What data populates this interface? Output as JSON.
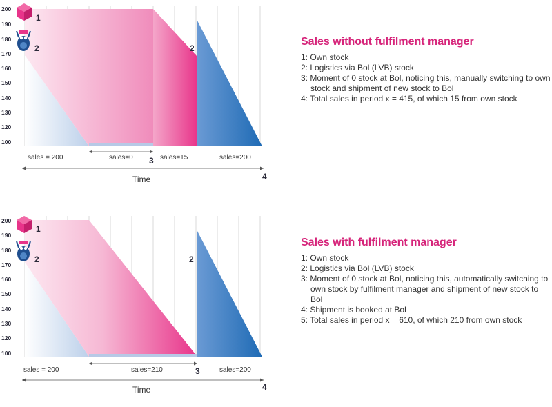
{
  "colors": {
    "pink": "#e8348a",
    "blue": "#1f6bb5",
    "title": "#d6247a",
    "grid": "#d8d8d8"
  },
  "yticks": [
    "200",
    "190",
    "180",
    "170",
    "160",
    "150",
    "140",
    "130",
    "120",
    "100"
  ],
  "icons": {
    "own_stock": "pink-cube-icon",
    "logistics": "blue-mascot-icon"
  },
  "panels": [
    {
      "title": "Sales without fulfilment manager",
      "items": [
        "1: Own stock",
        "2: Logistics via Bol (LVB) stock",
        "3: Moment of 0 stock at Bol, noticing this, manually switching to own stock and shipment of new stock to Bol",
        "4: Total sales in period x = 415, of which 15 from own stock"
      ],
      "sales": [
        "sales = 200",
        "sales=0",
        "sales=15",
        "sales=200"
      ],
      "markers": {
        "one": "1",
        "two": "2",
        "two_mid": "2",
        "three": "3",
        "four": "4"
      },
      "time_label": "Time"
    },
    {
      "title": "Sales with fulfilment manager",
      "items": [
        "1: Own stock",
        "2: Logistics via Bol (LVB) stock",
        "3: Moment of 0 stock at Bol, noticing this, automatically switching to own stock by fulfilment manager and shipment of new stock to Bol",
        "4: Shipment is booked at Bol",
        "5: Total sales in period x = 610, of which 210 from own stock"
      ],
      "sales": [
        "sales = 200",
        "sales=210",
        "sales=200"
      ],
      "markers": {
        "one": "1",
        "two": "2",
        "two_mid": "2",
        "three": "3",
        "four": "4"
      },
      "time_label": "Time"
    }
  ]
}
